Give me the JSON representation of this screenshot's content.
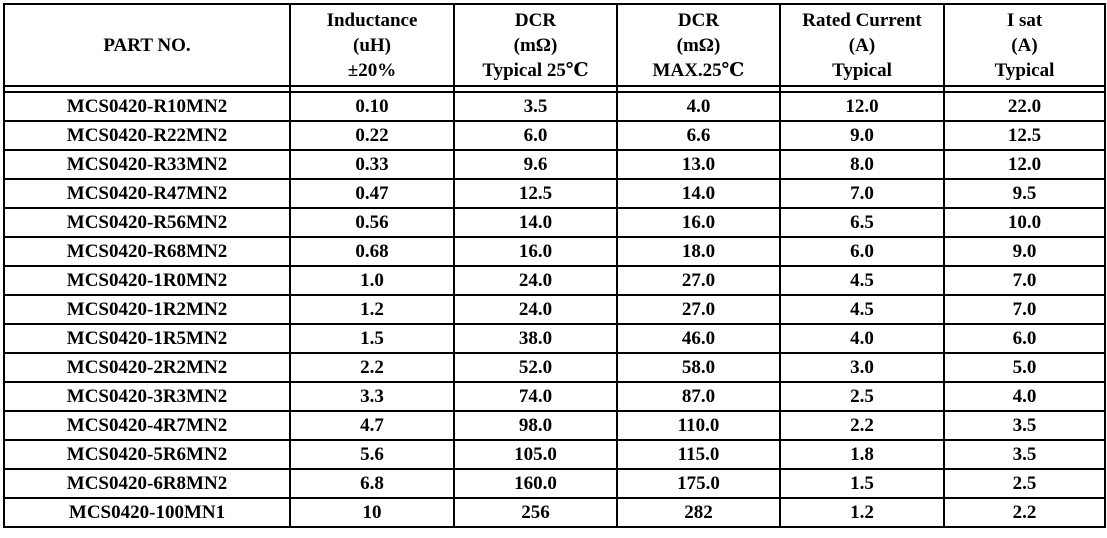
{
  "table": {
    "headers": [
      [
        "PART NO."
      ],
      [
        "Inductance",
        "(uH)",
        "±20%"
      ],
      [
        "DCR",
        "(mΩ)",
        "Typical 25℃"
      ],
      [
        "DCR",
        "(mΩ)",
        "MAX.25℃"
      ],
      [
        "Rated Current",
        "(A)",
        "Typical"
      ],
      [
        "I sat",
        "(A)",
        "Typical"
      ]
    ],
    "rows": [
      [
        "MCS0420-R10MN2",
        "0.10",
        "3.5",
        "4.0",
        "12.0",
        "22.0"
      ],
      [
        "MCS0420-R22MN2",
        "0.22",
        "6.0",
        "6.6",
        "9.0",
        "12.5"
      ],
      [
        "MCS0420-R33MN2",
        "0.33",
        "9.6",
        "13.0",
        "8.0",
        "12.0"
      ],
      [
        "MCS0420-R47MN2",
        "0.47",
        "12.5",
        "14.0",
        "7.0",
        "9.5"
      ],
      [
        "MCS0420-R56MN2",
        "0.56",
        "14.0",
        "16.0",
        "6.5",
        "10.0"
      ],
      [
        "MCS0420-R68MN2",
        "0.68",
        "16.0",
        "18.0",
        "6.0",
        "9.0"
      ],
      [
        "MCS0420-1R0MN2",
        "1.0",
        "24.0",
        "27.0",
        "4.5",
        "7.0"
      ],
      [
        "MCS0420-1R2MN2",
        "1.2",
        "24.0",
        "27.0",
        "4.5",
        "7.0"
      ],
      [
        "MCS0420-1R5MN2",
        "1.5",
        "38.0",
        "46.0",
        "4.0",
        "6.0"
      ],
      [
        "MCS0420-2R2MN2",
        "2.2",
        "52.0",
        "58.0",
        "3.0",
        "5.0"
      ],
      [
        "MCS0420-3R3MN2",
        "3.3",
        "74.0",
        "87.0",
        "2.5",
        "4.0"
      ],
      [
        "MCS0420-4R7MN2",
        "4.7",
        "98.0",
        "110.0",
        "2.2",
        "3.5"
      ],
      [
        "MCS0420-5R6MN2",
        "5.6",
        "105.0",
        "115.0",
        "1.8",
        "3.5"
      ],
      [
        "MCS0420-6R8MN2",
        "6.8",
        "160.0",
        "175.0",
        "1.5",
        "2.5"
      ],
      [
        "MCS0420-100MN1",
        "10",
        "256",
        "282",
        "1.2",
        "2.2"
      ]
    ]
  }
}
